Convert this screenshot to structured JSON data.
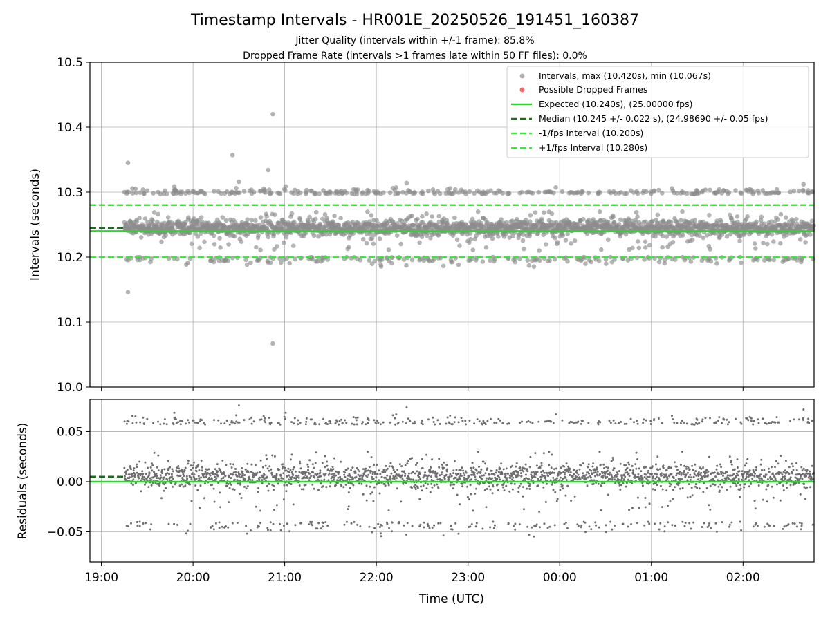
{
  "chart_data": {
    "type": "scatter",
    "title": "Timestamp Intervals - HR001E_20250526_191451_160387",
    "subtitle_lines": [
      "Jitter Quality (intervals within +/-1 frame): 85.8%",
      "Dropped Frame Rate (intervals >1 frames late within 50 FF files): 0.0%"
    ],
    "xlabel": "Time (UTC)",
    "x_ticks": [
      "19:00",
      "20:00",
      "21:00",
      "22:00",
      "23:00",
      "00:00",
      "01:00",
      "02:00"
    ],
    "x_range_hours": [
      18.875,
      26.775
    ],
    "data_range_hours": [
      19.25,
      26.77
    ],
    "grid": true,
    "colors": {
      "points_top": "#8c8c8c",
      "points_residual": "#6e6e6e",
      "dropped": "#f06a6a",
      "expected": "#22dd22",
      "median": "#1a6e1a",
      "bounds": "#33ee33"
    },
    "panels": [
      {
        "id": "intervals",
        "ylabel": "Intervals (seconds)",
        "ylim": [
          10.0,
          10.5
        ],
        "y_ticks": [
          "10.0",
          "10.1",
          "10.2",
          "10.3",
          "10.4",
          "10.5"
        ],
        "y_tick_values": [
          10.0,
          10.1,
          10.2,
          10.3,
          10.4,
          10.5
        ],
        "expected": 10.24,
        "median": 10.245,
        "lower_bound": 10.2,
        "upper_bound": 10.28,
        "legend_placement": "top-right",
        "legend": [
          "Intervals, max (10.420s), min (10.067s)",
          "Possible Dropped Frames",
          "Expected (10.240s), (25.00000 fps)",
          "Median (10.245 +/- 0.022 s), (24.98690 +/- 0.05 fps)",
          "-1/fps Interval (10.200s)",
          "+1/fps Interval (10.280s)"
        ],
        "outliers": [
          {
            "x": 19.29,
            "y": 10.345
          },
          {
            "x": 19.29,
            "y": 10.146
          },
          {
            "x": 20.87,
            "y": 10.42
          },
          {
            "x": 20.87,
            "y": 10.067
          },
          {
            "x": 20.43,
            "y": 10.357
          },
          {
            "x": 20.82,
            "y": 10.334
          },
          {
            "x": 20.5,
            "y": 10.316
          },
          {
            "x": 22.33,
            "y": 10.314
          },
          {
            "x": 26.66,
            "y": 10.312
          }
        ],
        "point_count": 2600
      },
      {
        "id": "residuals",
        "ylabel": "Residuals (seconds)",
        "ylim": [
          -0.08,
          0.082
        ],
        "y_ticks": [
          "−0.05",
          "0.00",
          "0.05"
        ],
        "y_tick_values": [
          -0.05,
          0.0,
          0.05
        ],
        "expected": 0.0,
        "median": 0.005,
        "point_count": 2600
      }
    ]
  }
}
